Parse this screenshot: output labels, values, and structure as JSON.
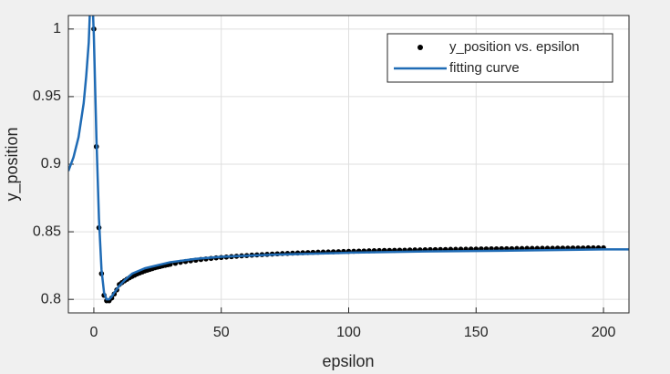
{
  "chart_data": {
    "type": "scatter",
    "xlabel": "epsilon",
    "ylabel": "y_position",
    "xlim": [
      -10,
      210
    ],
    "ylim": [
      0.79,
      1.01
    ],
    "xticks": [
      0,
      50,
      100,
      150,
      200
    ],
    "yticks": [
      0.8,
      0.85,
      0.9,
      0.95,
      1
    ],
    "grid": true,
    "legend": "upper right",
    "series": [
      {
        "name": "y_position vs. epsilon",
        "type": "scatter",
        "color": "#000000",
        "x": [
          0,
          1,
          2,
          3,
          4,
          5,
          6,
          7,
          8,
          9,
          10,
          11,
          12,
          13,
          14,
          15,
          16,
          17,
          18,
          19,
          20,
          21,
          22,
          23,
          24,
          25,
          26,
          27,
          28,
          29,
          30,
          32,
          34,
          36,
          38,
          40,
          42,
          44,
          46,
          48,
          50,
          52,
          54,
          56,
          58,
          60,
          62,
          64,
          66,
          68,
          70,
          72,
          74,
          76,
          78,
          80,
          82,
          84,
          86,
          88,
          90,
          92,
          94,
          96,
          98,
          100,
          102,
          104,
          106,
          108,
          110,
          112,
          114,
          116,
          118,
          120,
          122,
          124,
          126,
          128,
          130,
          132,
          134,
          136,
          138,
          140,
          142,
          144,
          146,
          148,
          150,
          152,
          154,
          156,
          158,
          160,
          162,
          164,
          166,
          168,
          170,
          172,
          174,
          176,
          178,
          180,
          182,
          184,
          186,
          188,
          190,
          192,
          194,
          196,
          198,
          200
        ],
        "values": [
          1.0,
          0.913,
          0.853,
          0.819,
          0.803,
          0.799,
          0.799,
          0.801,
          0.804,
          0.807,
          0.811,
          0.8124,
          0.8137,
          0.8149,
          0.816,
          0.817,
          0.8179,
          0.8188,
          0.8196,
          0.8203,
          0.821,
          0.8216,
          0.8222,
          0.8228,
          0.8234,
          0.8239,
          0.8243,
          0.8248,
          0.8252,
          0.8256,
          0.826,
          0.8267,
          0.8274,
          0.828,
          0.8285,
          0.829,
          0.8295,
          0.8299,
          0.8303,
          0.8307,
          0.831,
          0.8313,
          0.8316,
          0.8319,
          0.8322,
          0.8324,
          0.8327,
          0.8329,
          0.8331,
          0.8333,
          0.8335,
          0.8337,
          0.8339,
          0.834,
          0.8342,
          0.8343,
          0.8345,
          0.8346,
          0.8348,
          0.8349,
          0.835,
          0.8351,
          0.8352,
          0.8353,
          0.8354,
          0.8355,
          0.8356,
          0.8357,
          0.8358,
          0.8359,
          0.836,
          0.8361,
          0.8362,
          0.8362,
          0.8363,
          0.8364,
          0.8364,
          0.8365,
          0.8366,
          0.8366,
          0.8367,
          0.8368,
          0.8368,
          0.8369,
          0.8369,
          0.837,
          0.837,
          0.8371,
          0.8371,
          0.8372,
          0.8372,
          0.8373,
          0.8373,
          0.8374,
          0.8374,
          0.8375,
          0.8375,
          0.8375,
          0.8376,
          0.8376,
          0.8377,
          0.8377,
          0.8377,
          0.8378,
          0.8378,
          0.8378,
          0.8379,
          0.8379,
          0.8379,
          0.838,
          0.838,
          0.838,
          0.8381,
          0.8381,
          0.8381,
          0.8381
        ]
      },
      {
        "name": "fitting curve",
        "type": "line",
        "color": "#1f6bb5",
        "x": [
          -10,
          -8,
          -6,
          -4,
          -3,
          -2,
          -1.6,
          -1,
          -0.3,
          0,
          1,
          2,
          3,
          4,
          5,
          6,
          7,
          8,
          10,
          12,
          15,
          20,
          30,
          40,
          50,
          70,
          100,
          130,
          160,
          200,
          210
        ],
        "values": [
          0.895,
          0.905,
          0.92,
          0.945,
          0.965,
          0.99,
          1.01,
          null,
          1.01,
          0.995,
          0.92,
          0.86,
          0.822,
          0.805,
          0.8,
          0.8,
          0.802,
          0.805,
          0.81,
          0.814,
          0.819,
          0.823,
          0.8275,
          0.83,
          0.8315,
          0.833,
          0.8345,
          0.8355,
          0.836,
          0.837,
          0.837
        ]
      }
    ]
  }
}
